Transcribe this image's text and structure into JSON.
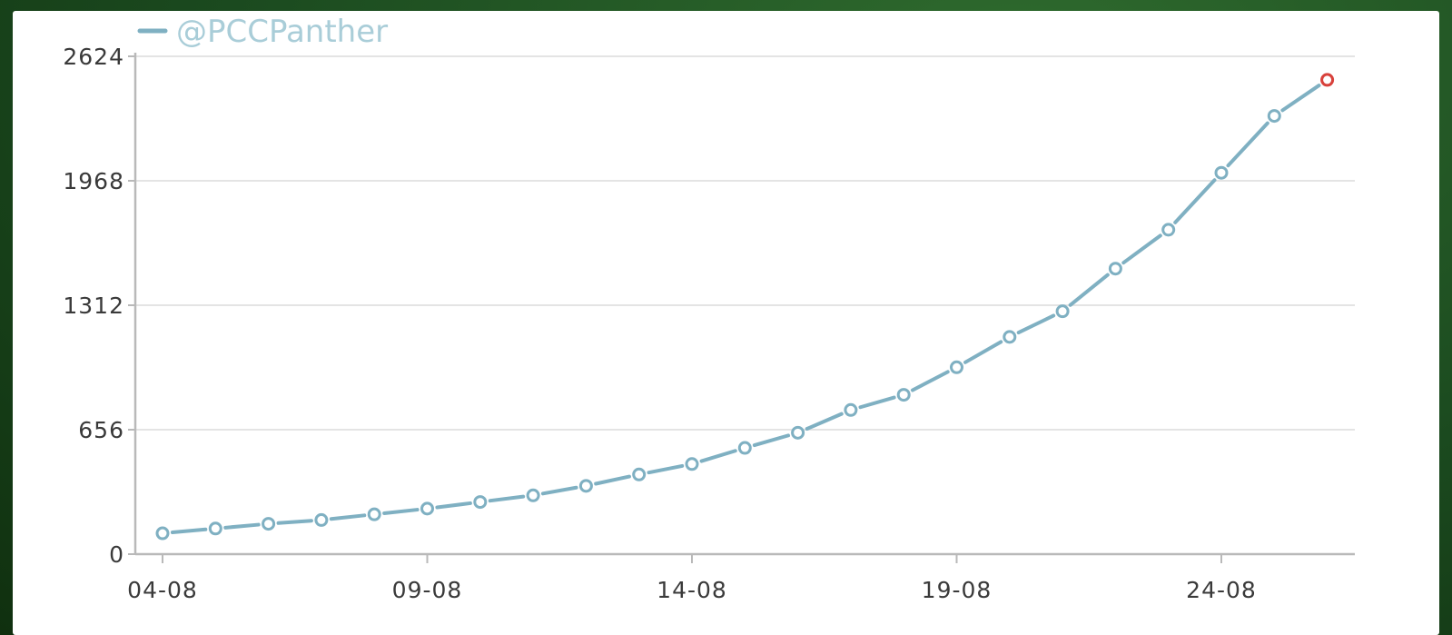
{
  "colors": {
    "series_line": "#7fb0c2",
    "marker_fill": "#ffffff",
    "highlight_marker": "#d8413b",
    "grid": "#e4e4e4",
    "axis": "#b9b9b9",
    "legend_text": "#a9cdd8"
  },
  "chart_data": {
    "type": "line",
    "title": "",
    "xlabel": "",
    "ylabel": "",
    "x_ticks": [
      "04-08",
      "09-08",
      "14-08",
      "19-08",
      "24-08"
    ],
    "y_ticks": [
      "0",
      "656",
      "1312",
      "1968",
      "2624"
    ],
    "ylim": [
      0,
      2624
    ],
    "xlim": [
      "04-08",
      "27-08"
    ],
    "grid": true,
    "legend_position": "top-left",
    "categories": [
      "04-08",
      "05-08",
      "06-08",
      "07-08",
      "08-08",
      "09-08",
      "10-08",
      "11-08",
      "12-08",
      "13-08",
      "14-08",
      "15-08",
      "16-08",
      "17-08",
      "18-08",
      "19-08",
      "20-08",
      "21-08",
      "22-08",
      "23-08",
      "24-08",
      "25-08",
      "26-08"
    ],
    "series": [
      {
        "name": "@PCCPanther",
        "values": [
          110,
          135,
          160,
          180,
          210,
          240,
          275,
          310,
          360,
          420,
          475,
          560,
          640,
          760,
          840,
          985,
          1145,
          1280,
          1505,
          1710,
          2010,
          2310,
          2500
        ],
        "highlight_last": true
      }
    ]
  }
}
